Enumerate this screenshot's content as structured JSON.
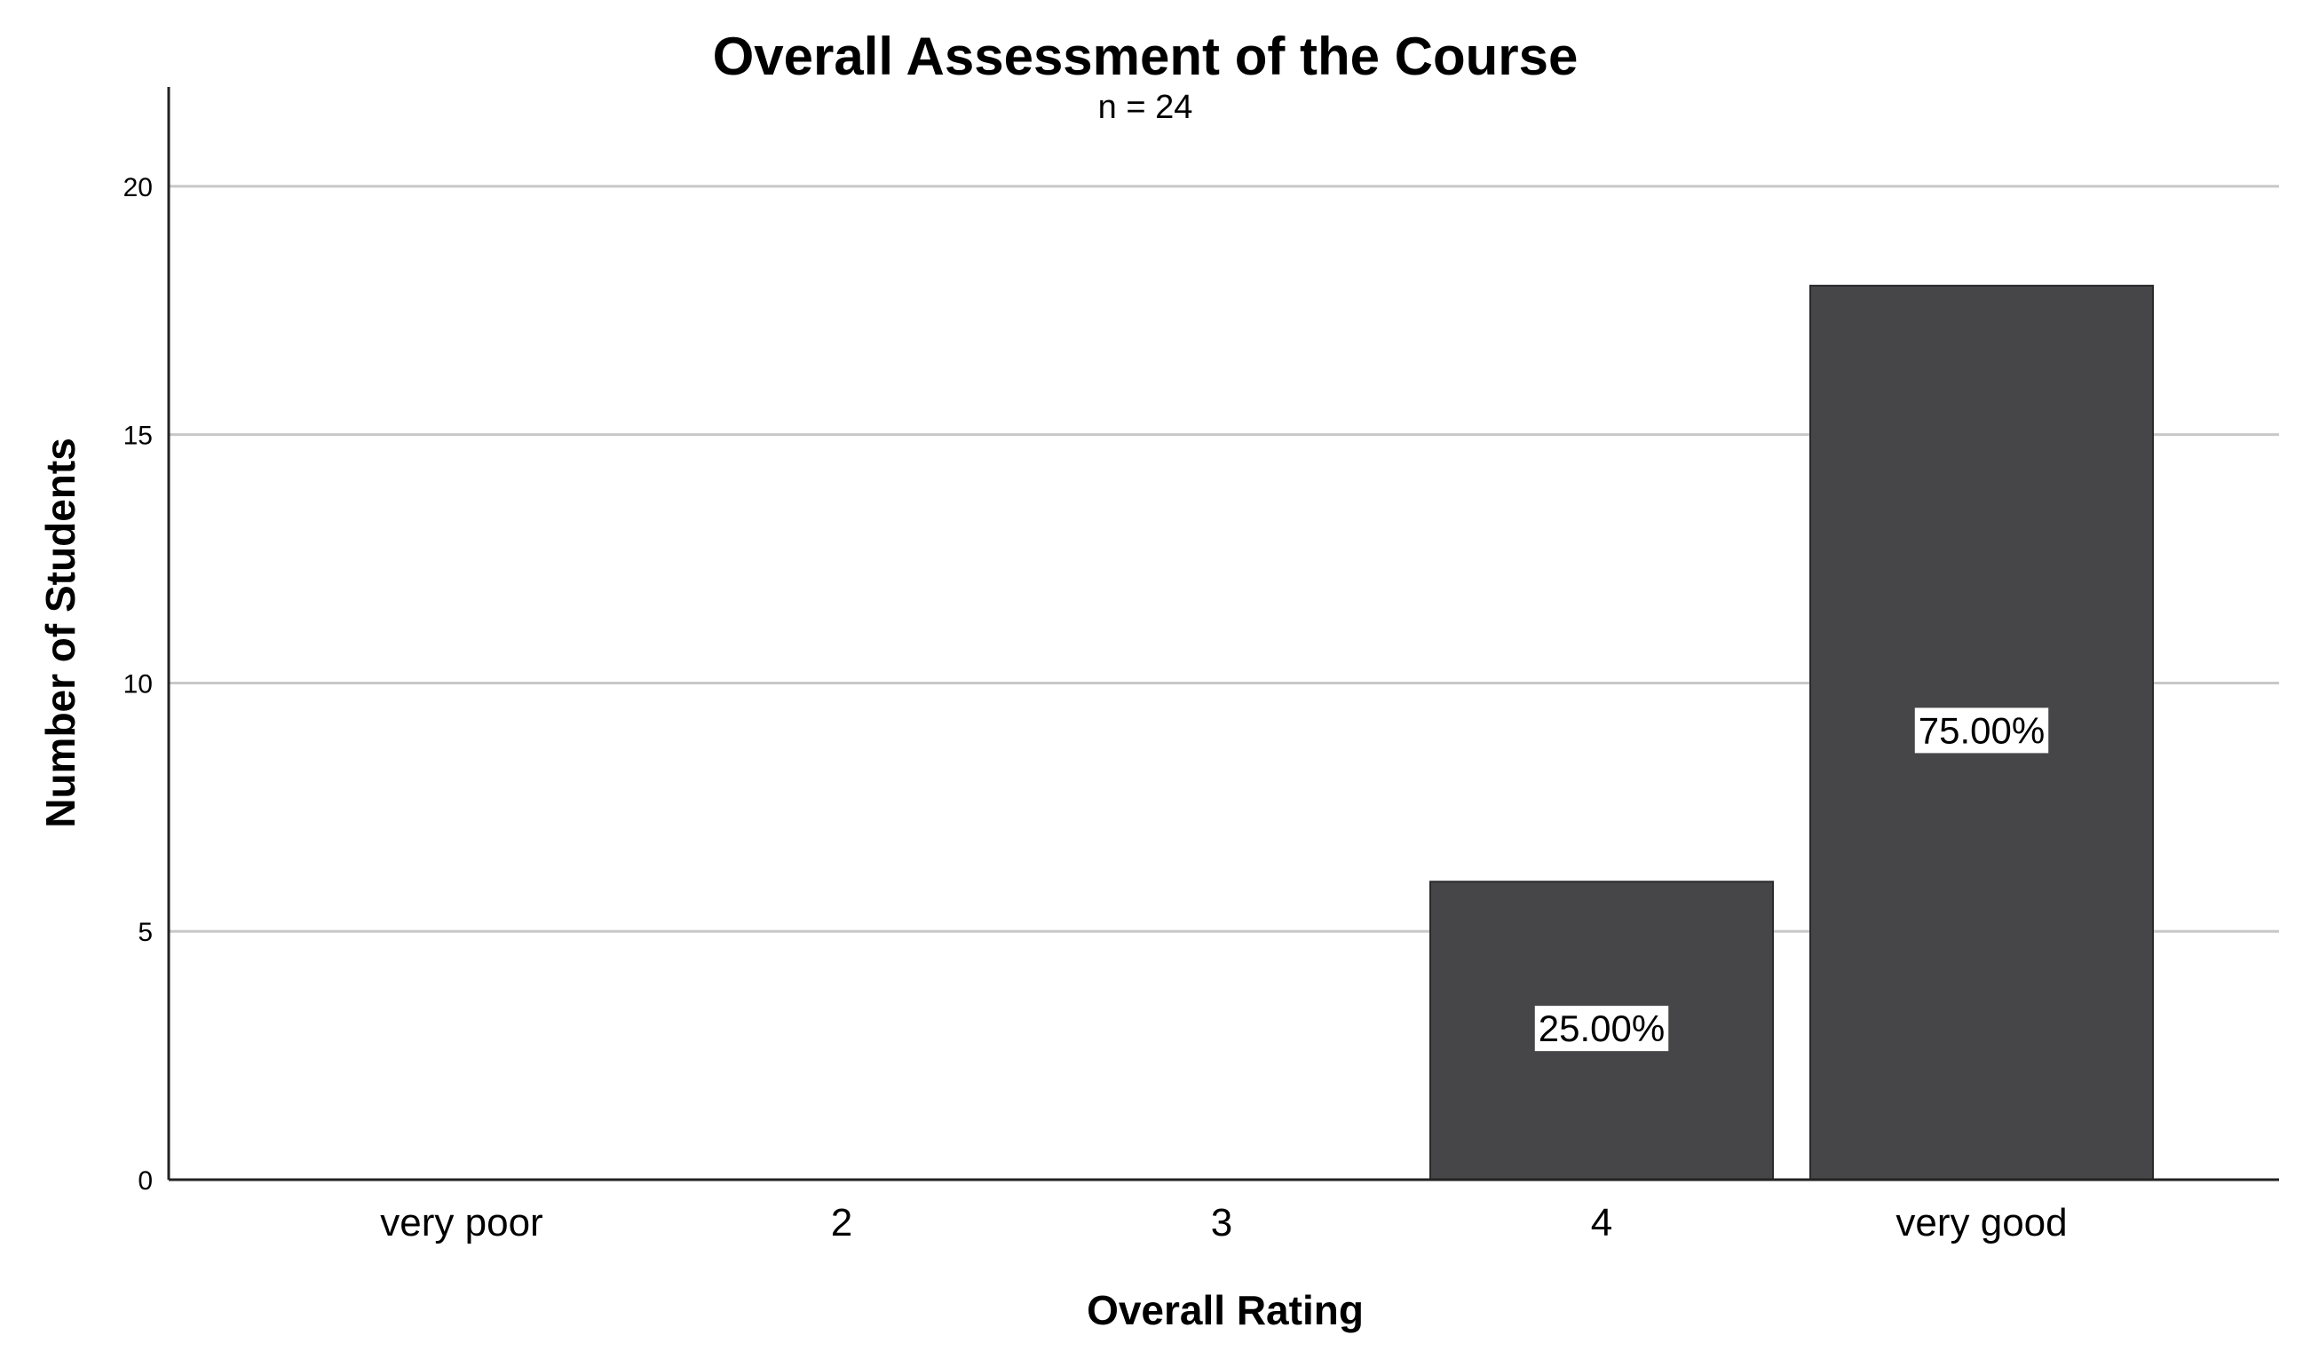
{
  "chart_data": {
    "type": "bar",
    "title": "Overall Assessment of the Course",
    "subtitle": "n = 24",
    "xlabel": "Overall Rating",
    "ylabel": "Number of Students",
    "categories": [
      "very poor",
      "2",
      "3",
      "4",
      "very good"
    ],
    "values": [
      0,
      0,
      0,
      6,
      18
    ],
    "data_labels": [
      "",
      "",
      "",
      "25.00%",
      "75.00%"
    ],
    "ylim": [
      0,
      22
    ],
    "yticks": [
      0,
      5,
      10,
      15,
      20
    ],
    "grid": true,
    "legend": "none",
    "bar_color": "#464648",
    "grid_color": "#c8c8c8"
  }
}
